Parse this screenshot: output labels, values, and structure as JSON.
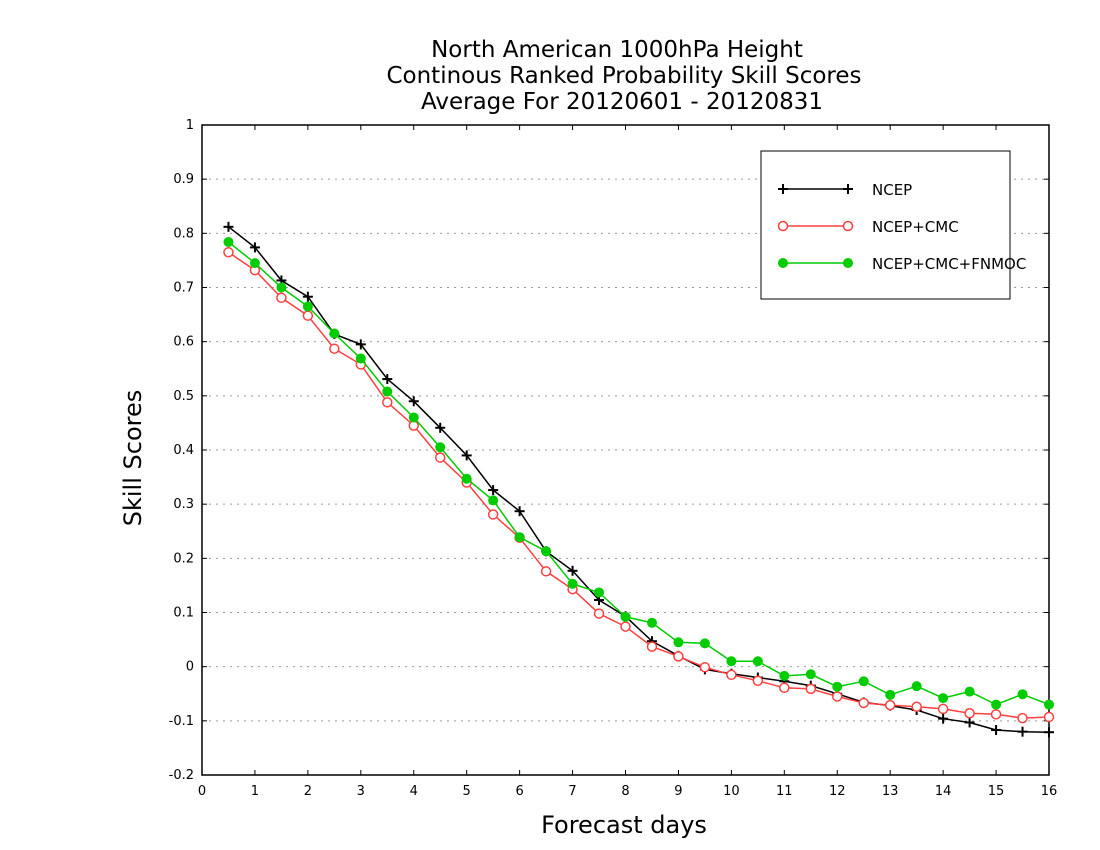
{
  "chart_data": {
    "type": "line",
    "title": "North American 1000hPa Height",
    "subtitle": [
      "Continous Ranked Probability Skill Scores",
      "Average For 20120601 - 20120831"
    ],
    "xlabel": "Forecast days",
    "ylabel": "Skill Scores",
    "xlim": [
      0,
      16
    ],
    "ylim": [
      -0.2,
      1
    ],
    "xticks": [
      0,
      1,
      2,
      3,
      4,
      5,
      6,
      7,
      8,
      9,
      10,
      11,
      12,
      13,
      14,
      15,
      16
    ],
    "yticks": [
      -0.2,
      -0.1,
      0,
      0.1,
      0.2,
      0.3,
      0.4,
      0.5,
      0.6,
      0.7,
      0.8,
      0.9,
      1
    ],
    "ytick_labels": [
      "-0.2",
      "-0.1",
      "0",
      "0.1",
      "0.2",
      "0.3",
      "0.4",
      "0.5",
      "0.6",
      "0.7",
      "0.8",
      "0.9",
      "1"
    ],
    "grid": "horizontal dotted",
    "legend_position": "top-right",
    "x": [
      0.5,
      1,
      1.5,
      2,
      2.5,
      3,
      3.5,
      4,
      4.5,
      5,
      5.5,
      6,
      6.5,
      7,
      7.5,
      8,
      8.5,
      9,
      9.5,
      10,
      10.5,
      11,
      11.5,
      12,
      12.5,
      13,
      13.5,
      14,
      14.5,
      15,
      15.5,
      16
    ],
    "series": [
      {
        "name": "NCEP",
        "color": "#000000",
        "marker": "plus",
        "values": [
          0.812,
          0.774,
          0.713,
          0.683,
          0.614,
          0.595,
          0.531,
          0.49,
          0.441,
          0.39,
          0.326,
          0.287,
          0.213,
          0.177,
          0.123,
          0.093,
          0.047,
          0.02,
          -0.005,
          -0.013,
          -0.02,
          -0.027,
          -0.035,
          -0.05,
          -0.066,
          -0.072,
          -0.08,
          -0.096,
          -0.103,
          -0.117,
          -0.12,
          -0.121
        ]
      },
      {
        "name": "NCEP+CMC",
        "color": "#ff4040",
        "marker": "open-circle",
        "values": [
          0.765,
          0.732,
          0.681,
          0.648,
          0.587,
          0.558,
          0.488,
          0.445,
          0.386,
          0.34,
          0.281,
          0.238,
          0.176,
          0.143,
          0.098,
          0.074,
          0.037,
          0.019,
          -0.001,
          -0.015,
          -0.026,
          -0.039,
          -0.041,
          -0.055,
          -0.067,
          -0.071,
          -0.074,
          -0.078,
          -0.086,
          -0.088,
          -0.095,
          -0.093
        ]
      },
      {
        "name": "NCEP+CMC+FNMOC",
        "color": "#00cc00",
        "marker": "filled-circle",
        "values": [
          0.784,
          0.745,
          0.7,
          0.665,
          0.615,
          0.569,
          0.508,
          0.46,
          0.405,
          0.347,
          0.307,
          0.239,
          0.213,
          0.153,
          0.137,
          0.092,
          0.081,
          0.045,
          0.043,
          0.01,
          0.01,
          -0.017,
          -0.014,
          -0.037,
          -0.027,
          -0.052,
          -0.036,
          -0.058,
          -0.046,
          -0.07,
          -0.051,
          -0.07
        ]
      }
    ]
  }
}
